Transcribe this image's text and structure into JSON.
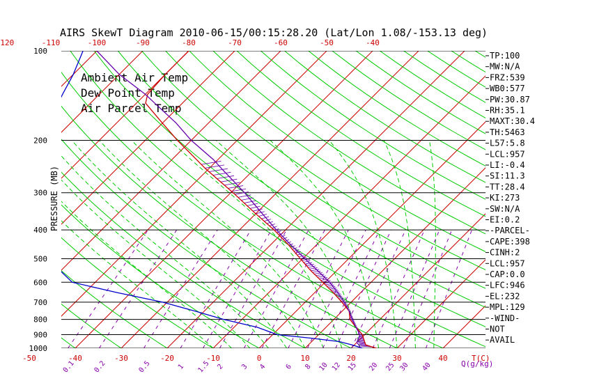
{
  "chart_data": {
    "type": "skew-t",
    "title": "AIRS SkewT Diagram 2010-06-15/00:15:28.20 (Lat/Lon 1.08/-153.13 deg)",
    "ylabel": "PRESSURE (MB)",
    "temp_unit": "T(C)",
    "mixing_unit": "Q(g/kg)",
    "pressure_ticks": [
      "100",
      "200",
      "300",
      "400",
      "500",
      "600",
      "700",
      "800",
      "900",
      "1000"
    ],
    "top_temperature_ticks": [
      "-120",
      "-110",
      "-100",
      "-90",
      "-80",
      "-70",
      "-60",
      "-50",
      "-40"
    ],
    "bottom_temperature_ticks": [
      "-50",
      "-40",
      "-30",
      "-20",
      "-10",
      "0",
      "10",
      "20",
      "30",
      "40"
    ],
    "mixing_ratio_ticks": [
      "0.1",
      "0.2",
      "0.5",
      "1",
      "1.5",
      "2",
      "3",
      "4",
      "6",
      "8",
      "10",
      "12",
      "15",
      "20",
      "25",
      "30",
      "40"
    ],
    "legend": [
      {
        "name": "Ambient Air Temp",
        "color": "#cc0000"
      },
      {
        "name": "Dew Point Temp",
        "color": "#0000cc"
      },
      {
        "name": "Air Parcel Temp",
        "color": "#6600aa"
      }
    ],
    "series": [
      {
        "name": "Ambient Air Temp",
        "pressure": [
          1000,
          975,
          950,
          925,
          900,
          850,
          800,
          750,
          700,
          650,
          600,
          550,
          500,
          450,
          400,
          350,
          300,
          250,
          200,
          175,
          150,
          140,
          120,
          100
        ],
        "temperature": [
          25.5,
          22.5,
          21.5,
          20.5,
          19.5,
          16.5,
          13.5,
          11.5,
          8.0,
          4.0,
          -0.5,
          -5.5,
          -10.5,
          -16.0,
          -22.5,
          -30.5,
          -39.5,
          -50.5,
          -63.0,
          -70.0,
          -78.0,
          -79.5,
          -80.0,
          -80.0
        ]
      },
      {
        "name": "Dew Point Temp",
        "pressure": [
          1000,
          975,
          950,
          925,
          900,
          850,
          800,
          750,
          700,
          650,
          600,
          550,
          500,
          450,
          400,
          350,
          300,
          250,
          200,
          175,
          150,
          140,
          120,
          100
        ],
        "temperature": [
          22.5,
          19.5,
          16.0,
          9.0,
          1.0,
          -5.0,
          -14.0,
          -22.0,
          -31.0,
          -43.0,
          -55.0,
          -60.0,
          -65.0,
          -70.0,
          -75.0,
          -80.0,
          -85.0,
          -88.0,
          -90.0,
          -93.0,
          -97.0,
          -98.0,
          -100.0,
          -103.0
        ]
      },
      {
        "name": "Air Parcel Temp",
        "pressure": [
          1000,
          975,
          957,
          900,
          850,
          800,
          750,
          700,
          650,
          600,
          550,
          500,
          450,
          400,
          350,
          300,
          250,
          232,
          200,
          175,
          150,
          140,
          120,
          100
        ],
        "temperature": [
          22.0,
          21.0,
          20.0,
          19.0,
          16.5,
          14.0,
          11.5,
          8.5,
          5.0,
          1.0,
          -4.0,
          -9.5,
          -15.5,
          -22.0,
          -29.0,
          -37.0,
          -47.0,
          -51.0,
          -60.0,
          -67.0,
          -76.0,
          -80.0,
          -90.0,
          -100.0
        ]
      }
    ]
  },
  "indices": [
    "TP:100",
    "MW:N/A",
    "FRZ:539",
    "WB0:577",
    "PW:30.87",
    "RH:35.1",
    "MAXT:30.4",
    "TH:5463",
    "L57:5.8",
    "LCL:957",
    "LI:-0.4",
    "SI:11.3",
    "TT:28.4",
    "KI:273",
    "SW:N/A",
    "EI:0.2",
    "-PARCEL-",
    "CAPE:398",
    "CINH:2",
    "LCL:957",
    "CAP:0.0",
    "LFC:946",
    "EL:232",
    "MPL:129",
    "-WIND-",
    "NOT",
    "AVAIL"
  ],
  "colors": {
    "temperature": "#cc0000",
    "dewpoint": "#0000cc",
    "parcel": "#6600aa",
    "isotherm": "#cc0000",
    "dry_adiabat": "#00cc00",
    "moist_adiabat": "#00cc00",
    "mixing_ratio": "#8800aa",
    "isobar": "#000000"
  }
}
